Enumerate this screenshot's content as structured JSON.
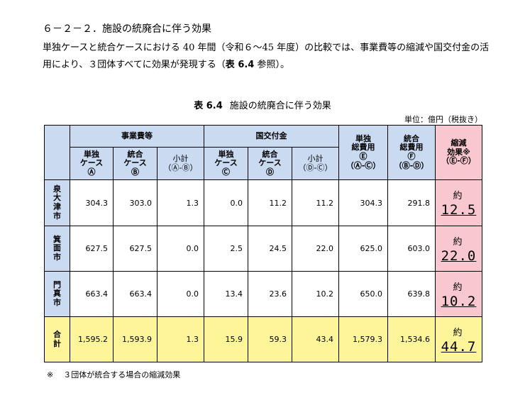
{
  "heading": "６－２－２．施設の統廃合に伴う効果",
  "paragraph": {
    "before": "単独ケースと統合ケースにおける 40 年間（令和６～45 年度）の比較では、事業費等の縮減や国交付金の活用により、３団体すべてに効果が発現する（",
    "ref": "表 6.4",
    "after": " 参照）。"
  },
  "caption": {
    "number": "表 6.4",
    "title": "施設の統廃合に伴う効果"
  },
  "unit_note": "単位：億円（税抜き）",
  "table": {
    "group_jigyohi": "事業費等",
    "group_kokkofu": "国交付金",
    "col_single_total": "単独\n総費用\nⒺ\n（Ⓐ-Ⓒ）",
    "col_merged_total": "統合\n総費用\nⒻ\n（Ⓑ-Ⓓ）",
    "col_effect": "縮減\n効果※\n（Ⓔ-Ⓕ）",
    "col_a": "単独\nケース\nⒶ",
    "col_b": "統合\nケース\nⒷ",
    "col_ab": "小計\n（Ⓐ-Ⓑ）",
    "col_c": "単独\nケース\nⒸ",
    "col_d": "統合\nケース\nⒹ",
    "col_cd": "小計\n（Ⓓ-Ⓒ）",
    "approx": "約",
    "rows": [
      {
        "name": "泉\n大\n津\n市",
        "a": "304.3",
        "b": "303.0",
        "ab": "1.3",
        "c": "0.0",
        "d": "11.2",
        "cd": "11.2",
        "e": "304.3",
        "f": "291.8",
        "eff": "12.5"
      },
      {
        "name": "箕\n面\n市",
        "a": "627.5",
        "b": "627.5",
        "ab": "0.0",
        "c": "2.5",
        "d": "24.5",
        "cd": "22.0",
        "e": "625.0",
        "f": "603.0",
        "eff": "22.0"
      },
      {
        "name": "門\n真\n市",
        "a": "663.4",
        "b": "663.4",
        "ab": "0.0",
        "c": "13.4",
        "d": "23.6",
        "cd": "10.2",
        "e": "650.0",
        "f": "639.8",
        "eff": "10.2"
      },
      {
        "name": "合\n計",
        "a": "1,595.2",
        "b": "1,593.9",
        "ab": "1.3",
        "c": "15.9",
        "d": "59.3",
        "cd": "43.4",
        "e": "1,579.3",
        "f": "1,534.6",
        "eff": "44.7"
      }
    ]
  },
  "footnote": {
    "mark": "※",
    "text": "３団体が統合する場合の縮減効果"
  },
  "colors": {
    "header": "#c9daf1",
    "effect": "#f9c7cf",
    "total": "#fef59a"
  }
}
